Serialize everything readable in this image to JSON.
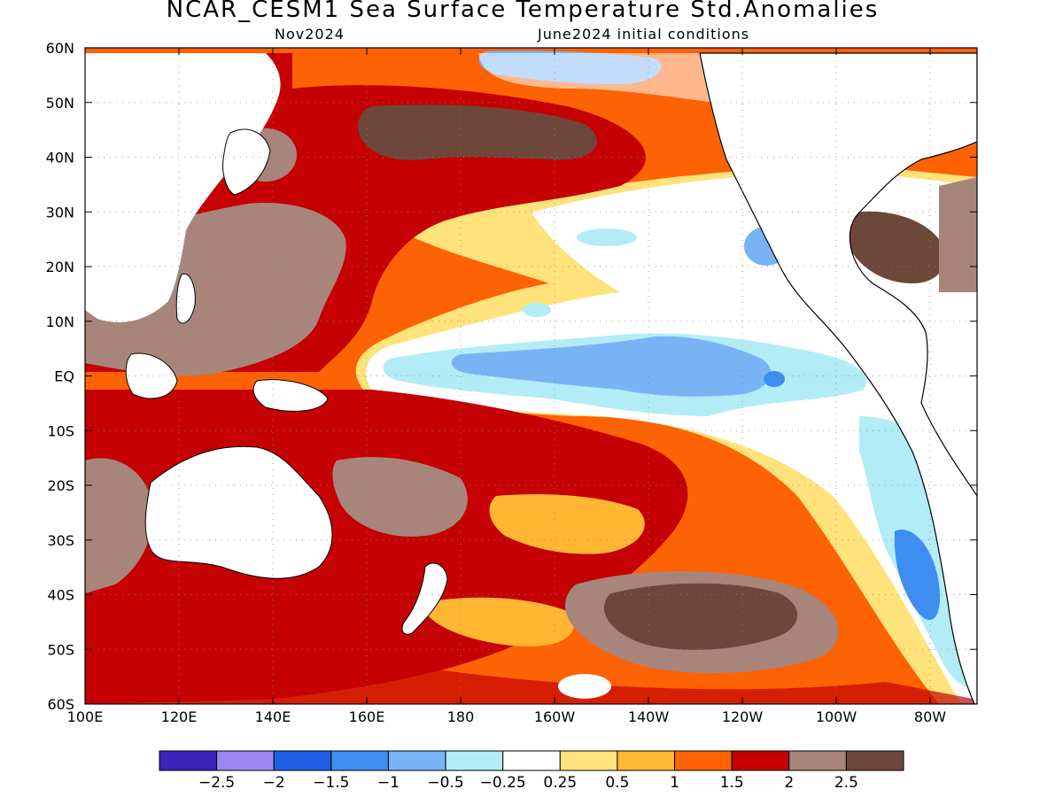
{
  "header": {
    "title": "NCAR_CESM1 Sea Surface Temperature Std.Anomalies",
    "valid_month": "Nov2024",
    "init_conditions": "June2024 initial conditions"
  },
  "axes": {
    "lon_labels": [
      "100E",
      "120E",
      "140E",
      "160E",
      "180",
      "160W",
      "140W",
      "120W",
      "100W",
      "80W"
    ],
    "lon_values": [
      100,
      120,
      140,
      160,
      180,
      200,
      220,
      240,
      260,
      280
    ],
    "lat_labels": [
      "60N",
      "50N",
      "40N",
      "30N",
      "20N",
      "10N",
      "EQ",
      "10S",
      "20S",
      "30S",
      "40S",
      "50S",
      "60S"
    ],
    "lat_values": [
      60,
      50,
      40,
      30,
      20,
      10,
      0,
      -10,
      -20,
      -30,
      -40,
      -50,
      -60
    ],
    "lon_range": [
      100,
      290
    ],
    "lat_range": [
      -60,
      60
    ],
    "grid": "dotted"
  },
  "colorbar": {
    "colors": [
      "#3b22b8",
      "#9b87f2",
      "#1f5fe6",
      "#3d8ef0",
      "#78b4f5",
      "#b2ecf7",
      "#ffffff",
      "#ffe27a",
      "#ffb632",
      "#ff6203",
      "#c50104",
      "#a8857b",
      "#6d4739"
    ],
    "labels": [
      "−2.5",
      "−2",
      "−1.5",
      "−1",
      "−0.5",
      "−0.25",
      "0.25",
      "0.5",
      "1",
      "1.5",
      "2",
      "2.5"
    ],
    "values": [
      -2.5,
      -2,
      -1.5,
      -1,
      -0.5,
      -0.25,
      0.25,
      0.5,
      1,
      1.5,
      2,
      2.5
    ]
  },
  "map_layers": {
    "ocean_base_color": "#ff6203",
    "land_color": "#ffffff",
    "coast_color": "#000000"
  }
}
